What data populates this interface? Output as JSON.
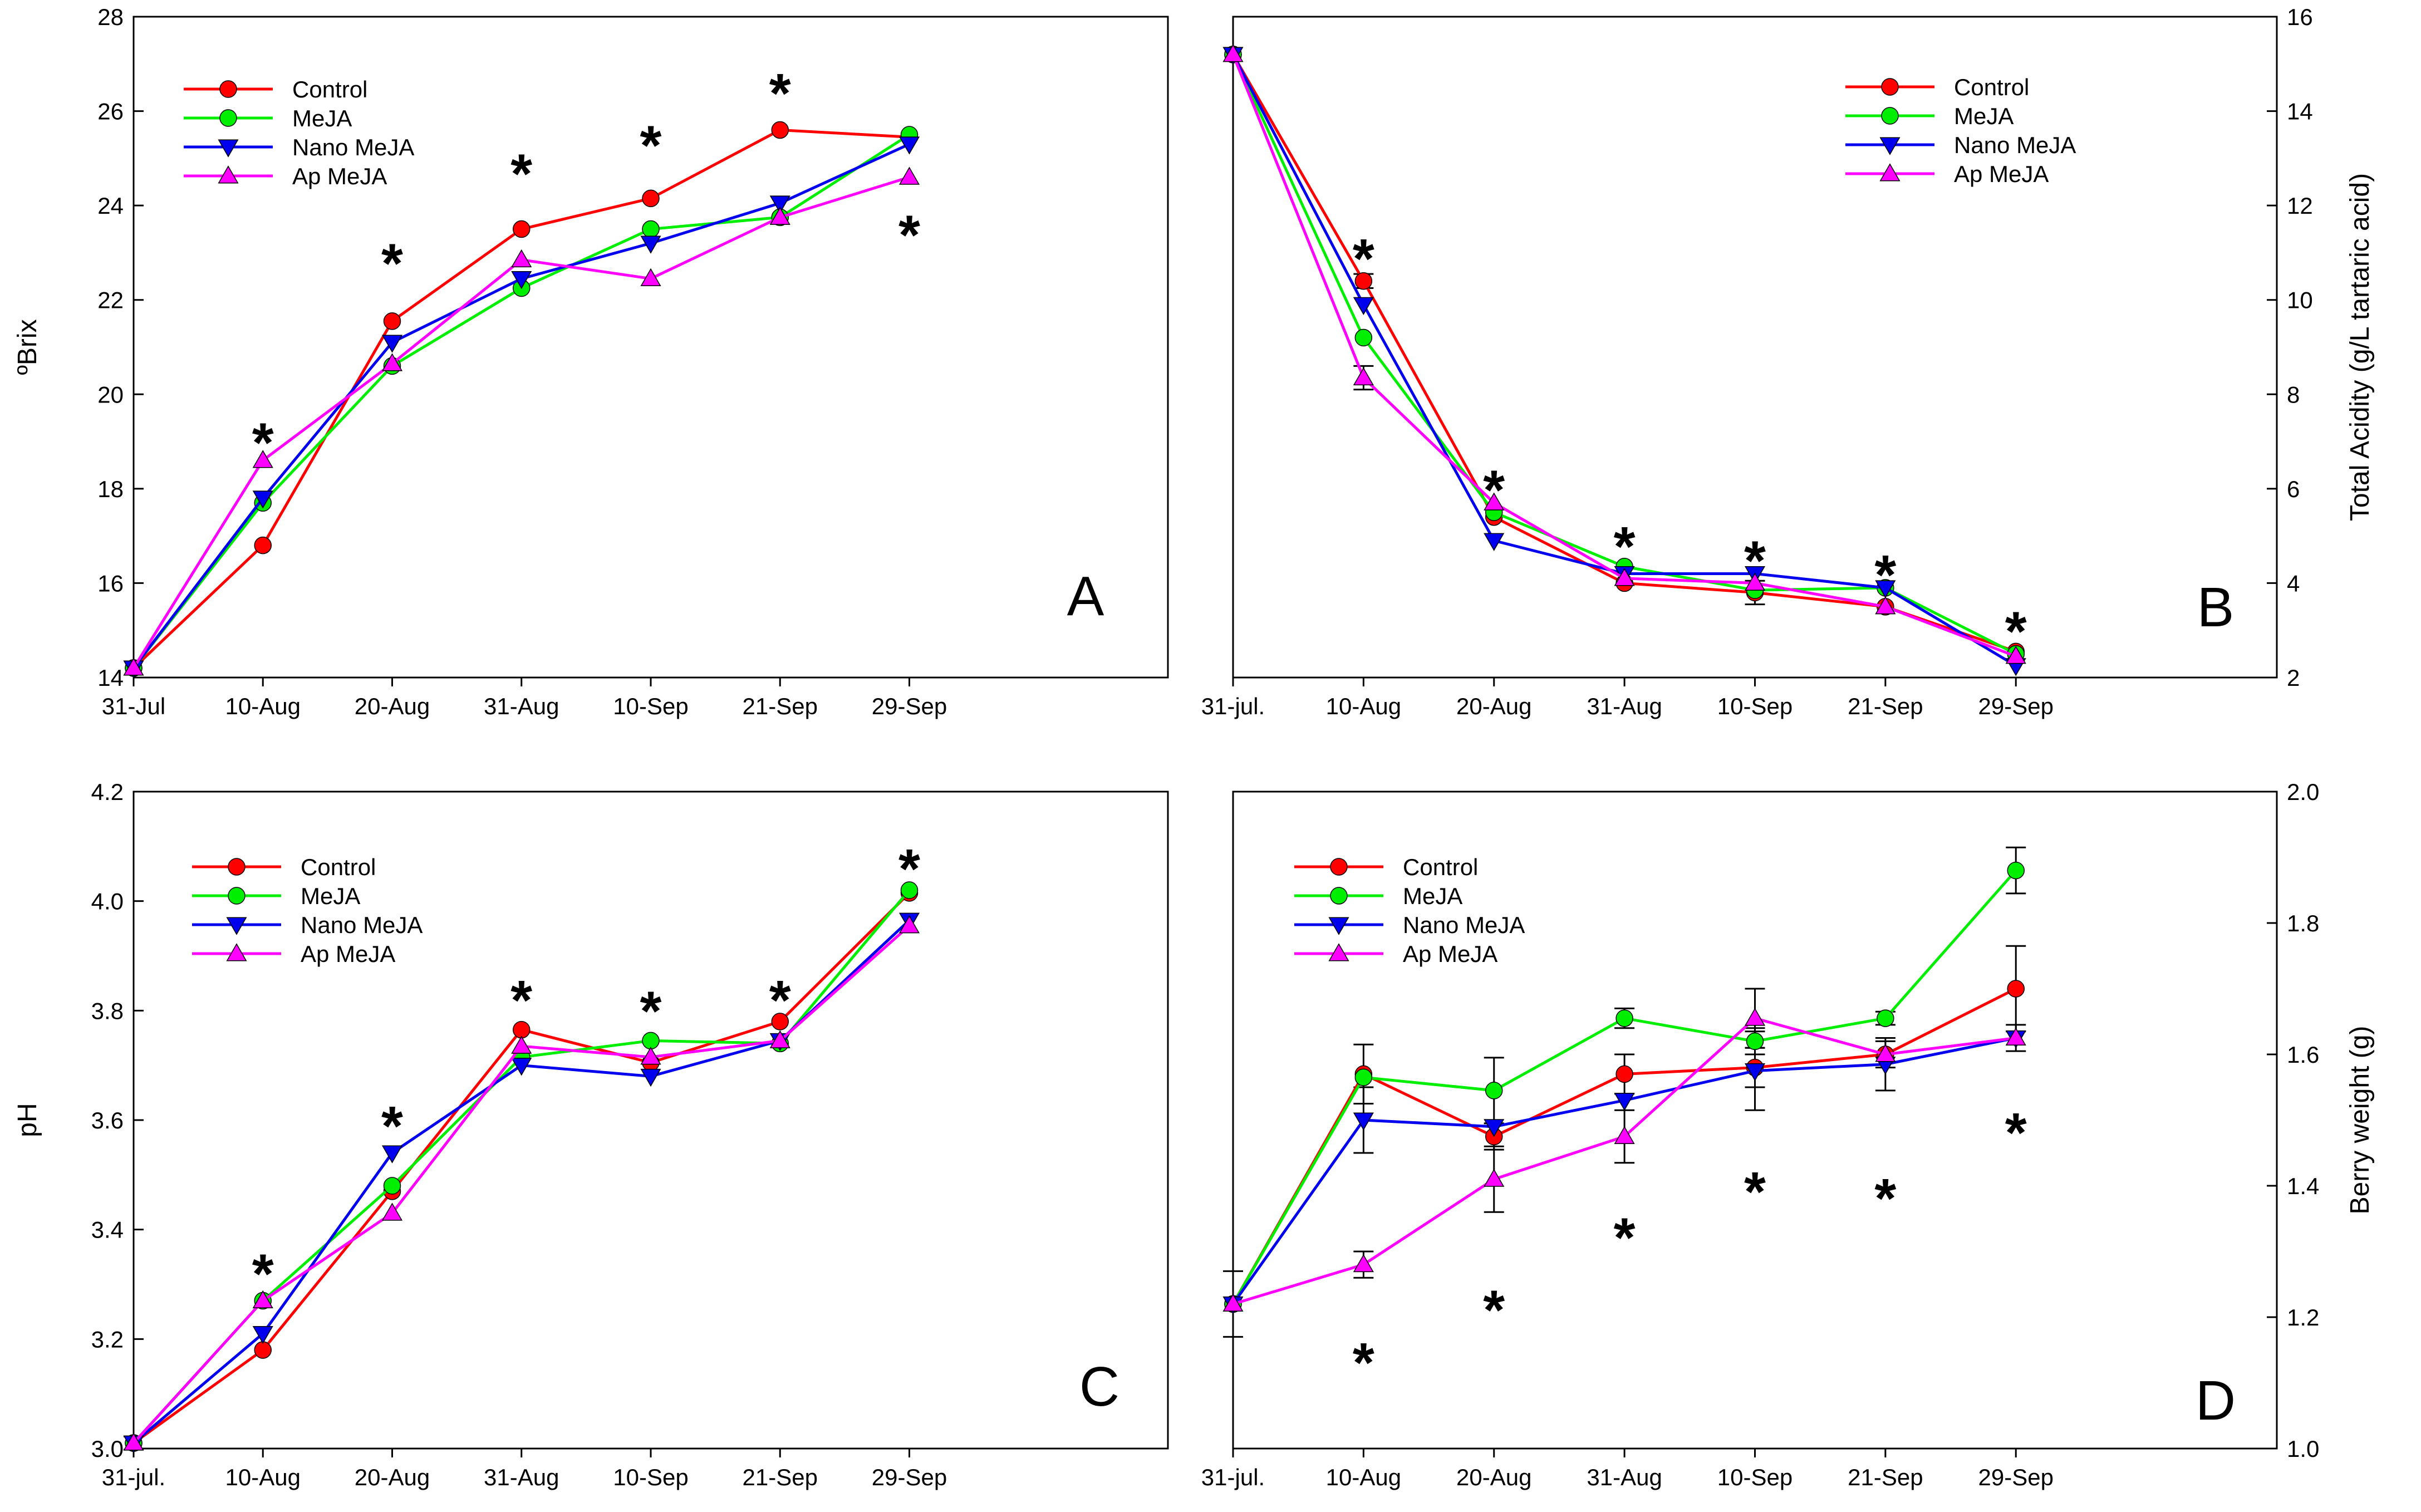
{
  "chart_data": [
    {
      "panel_letter": "A",
      "type": "line",
      "title": "",
      "xlabel": "",
      "ylabel": "ºBrix",
      "ylim": [
        14,
        28
      ],
      "y_ticks": [
        "14",
        "16",
        "18",
        "20",
        "22",
        "24",
        "26",
        "28"
      ],
      "categories": [
        "31-Jul",
        "10-Aug",
        "20-Aug",
        "31-Aug",
        "10-Sep",
        "21-Sep",
        "29-Sep"
      ],
      "legend_position": "top-left",
      "series": [
        {
          "name": "Control",
          "color": "#ff0000",
          "marker": "circle",
          "values": [
            14.2,
            16.8,
            21.55,
            23.5,
            24.15,
            25.6,
            25.45
          ]
        },
        {
          "name": "MeJA",
          "color": "#00ee00",
          "marker": "circle",
          "values": [
            14.2,
            17.7,
            20.6,
            22.25,
            23.5,
            23.75,
            25.5
          ]
        },
        {
          "name": "Nano MeJA",
          "color": "#0000ee",
          "marker": "triangle-down",
          "values": [
            14.2,
            17.8,
            21.1,
            22.45,
            23.2,
            24.05,
            25.3
          ]
        },
        {
          "name": "Ap MeJA",
          "color": "#ff00ff",
          "marker": "triangle-up",
          "values": [
            14.2,
            18.6,
            20.65,
            22.85,
            22.45,
            23.75,
            24.6
          ]
        }
      ],
      "error_bars": [],
      "significance": [
        {
          "label": "*",
          "x": 1,
          "y": 19.1
        },
        {
          "label": "*",
          "x": 2,
          "y": 22.9
        },
        {
          "label": "*",
          "x": 3,
          "y": 24.8
        },
        {
          "label": "*",
          "x": 4,
          "y": 25.4
        },
        {
          "label": "*",
          "x": 5,
          "y": 26.5
        },
        {
          "label": "*",
          "x": 6,
          "y": 23.5
        }
      ]
    },
    {
      "panel_letter": "B",
      "type": "line",
      "title": "",
      "xlabel": "",
      "ylabel": "Total Acidity (g/L tartaric acid)",
      "axis_side": "right",
      "ylim": [
        2,
        16
      ],
      "y_ticks": [
        "2",
        "4",
        "6",
        "8",
        "10",
        "12",
        "14",
        "16"
      ],
      "categories": [
        "31-jul.",
        "10-Aug",
        "20-Aug",
        "31-Aug",
        "10-Sep",
        "21-Sep",
        "29-Sep"
      ],
      "legend_position": "top-right",
      "series": [
        {
          "name": "Control",
          "color": "#ff0000",
          "marker": "circle",
          "values": [
            15.2,
            10.4,
            5.4,
            4.0,
            3.8,
            3.5,
            2.55
          ]
        },
        {
          "name": "MeJA",
          "color": "#00ee00",
          "marker": "circle",
          "values": [
            15.2,
            9.2,
            5.5,
            4.35,
            3.85,
            3.9,
            2.5
          ]
        },
        {
          "name": "Nano MeJA",
          "color": "#0000ee",
          "marker": "triangle-down",
          "values": [
            15.2,
            9.9,
            4.9,
            4.2,
            4.2,
            3.9,
            2.25
          ]
        },
        {
          "name": "Ap MeJA",
          "color": "#ff00ff",
          "marker": "triangle-up",
          "values": [
            15.2,
            8.35,
            5.7,
            4.1,
            4.0,
            3.5,
            2.45
          ]
        }
      ],
      "error_bars": [
        {
          "x": 1,
          "y": 10.4,
          "err": 0.15
        },
        {
          "x": 1,
          "y": 8.35,
          "err": 0.25
        },
        {
          "x": 4,
          "y": 3.8,
          "err": 0.25
        }
      ],
      "significance": [
        {
          "label": "*",
          "x": 1,
          "y": 11.0
        },
        {
          "label": "*",
          "x": 2,
          "y": 6.1
        },
        {
          "label": "*",
          "x": 3,
          "y": 4.9
        },
        {
          "label": "*",
          "x": 4,
          "y": 4.6
        },
        {
          "label": "*",
          "x": 5,
          "y": 4.3
        },
        {
          "label": "*",
          "x": 6,
          "y": 3.1
        }
      ]
    },
    {
      "panel_letter": "C",
      "type": "line",
      "title": "",
      "xlabel": "",
      "ylabel": "pH",
      "ylim": [
        3.0,
        4.2
      ],
      "y_ticks": [
        "3.0",
        "3.2",
        "3.4",
        "3.6",
        "3.8",
        "4.0",
        "4.2"
      ],
      "categories": [
        "31-jul.",
        "10-Aug",
        "20-Aug",
        "31-Aug",
        "10-Sep",
        "21-Sep",
        "29-Sep"
      ],
      "legend_position": "top-left",
      "series": [
        {
          "name": "Control",
          "color": "#ff0000",
          "marker": "circle",
          "values": [
            3.01,
            3.18,
            3.47,
            3.765,
            3.705,
            3.78,
            4.015
          ]
        },
        {
          "name": "MeJA",
          "color": "#00ee00",
          "marker": "circle",
          "values": [
            3.01,
            3.27,
            3.48,
            3.715,
            3.745,
            3.74,
            4.02
          ]
        },
        {
          "name": "Nano MeJA",
          "color": "#0000ee",
          "marker": "triangle-down",
          "values": [
            3.01,
            3.21,
            3.54,
            3.7,
            3.68,
            3.745,
            3.965
          ]
        },
        {
          "name": "Ap MeJA",
          "color": "#ff00ff",
          "marker": "triangle-up",
          "values": [
            3.01,
            3.27,
            3.43,
            3.735,
            3.715,
            3.745,
            3.955
          ]
        }
      ],
      "error_bars": [
        {
          "x": 0,
          "y": 3.01,
          "err": 0.012
        }
      ],
      "significance": [
        {
          "label": "*",
          "x": 1,
          "y": 3.33
        },
        {
          "label": "*",
          "x": 2,
          "y": 3.6
        },
        {
          "label": "*",
          "x": 3,
          "y": 3.83
        },
        {
          "label": "*",
          "x": 4,
          "y": 3.81
        },
        {
          "label": "*",
          "x": 5,
          "y": 3.83
        },
        {
          "label": "*",
          "x": 6,
          "y": 4.07
        }
      ]
    },
    {
      "panel_letter": "D",
      "type": "line",
      "title": "",
      "xlabel": "",
      "ylabel": "Berry weight (g)",
      "axis_side": "right",
      "ylim": [
        1.0,
        2.0
      ],
      "y_ticks": [
        "1.0",
        "1.2",
        "1.4",
        "1.6",
        "1.8",
        "2.0"
      ],
      "categories": [
        "31-jul.",
        "10-Aug",
        "20-Aug",
        "31-Aug",
        "10-Sep",
        "21-Sep",
        "29-Sep"
      ],
      "legend_position": "top-left",
      "series": [
        {
          "name": "Control",
          "color": "#ff0000",
          "marker": "circle",
          "values": [
            1.22,
            1.57,
            1.475,
            1.57,
            1.58,
            1.6,
            1.7
          ]
        },
        {
          "name": "MeJA",
          "color": "#00ee00",
          "marker": "circle",
          "values": [
            1.22,
            1.565,
            1.545,
            1.655,
            1.62,
            1.655,
            1.88
          ]
        },
        {
          "name": "Nano MeJA",
          "color": "#0000ee",
          "marker": "triangle-down",
          "values": [
            1.22,
            1.5,
            1.49,
            1.53,
            1.575,
            1.585,
            1.625
          ]
        },
        {
          "name": "Ap MeJA",
          "color": "#ff00ff",
          "marker": "triangle-up",
          "values": [
            1.22,
            1.28,
            1.41,
            1.475,
            1.655,
            1.6,
            1.625
          ]
        }
      ],
      "error_bars": [
        {
          "x": 0,
          "y": 1.22,
          "err": 0.05
        },
        {
          "x": 1,
          "y": 1.57,
          "err": 0.045
        },
        {
          "x": 1,
          "y": 1.5,
          "err": 0.05
        },
        {
          "x": 1,
          "y": 1.28,
          "err": 0.02
        },
        {
          "x": 2,
          "y": 1.545,
          "err": 0.05
        },
        {
          "x": 2,
          "y": 1.475,
          "err": 0.02
        },
        {
          "x": 2,
          "y": 1.41,
          "err": 0.05
        },
        {
          "x": 3,
          "y": 1.655,
          "err": 0.015
        },
        {
          "x": 3,
          "y": 1.57,
          "err": 0.03
        },
        {
          "x": 3,
          "y": 1.475,
          "err": 0.04
        },
        {
          "x": 4,
          "y": 1.62,
          "err": 0.02
        },
        {
          "x": 4,
          "y": 1.58,
          "err": 0.03
        },
        {
          "x": 4,
          "y": 1.655,
          "err": 0.045
        },
        {
          "x": 4,
          "y": 1.575,
          "err": 0.06
        },
        {
          "x": 5,
          "y": 1.655,
          "err": 0.01
        },
        {
          "x": 5,
          "y": 1.6,
          "err": 0.02
        },
        {
          "x": 5,
          "y": 1.585,
          "err": 0.04
        },
        {
          "x": 6,
          "y": 1.88,
          "err": 0.035
        },
        {
          "x": 6,
          "y": 1.7,
          "err": 0.065
        },
        {
          "x": 6,
          "y": 1.625,
          "err": 0.02
        }
      ],
      "significance": [
        {
          "label": "*",
          "x": 1,
          "y": 1.14
        },
        {
          "label": "*",
          "x": 2,
          "y": 1.22
        },
        {
          "label": "*",
          "x": 3,
          "y": 1.33
        },
        {
          "label": "*",
          "x": 4,
          "y": 1.4
        },
        {
          "label": "*",
          "x": 5,
          "y": 1.39
        },
        {
          "label": "*",
          "x": 6,
          "y": 1.49
        }
      ]
    }
  ]
}
